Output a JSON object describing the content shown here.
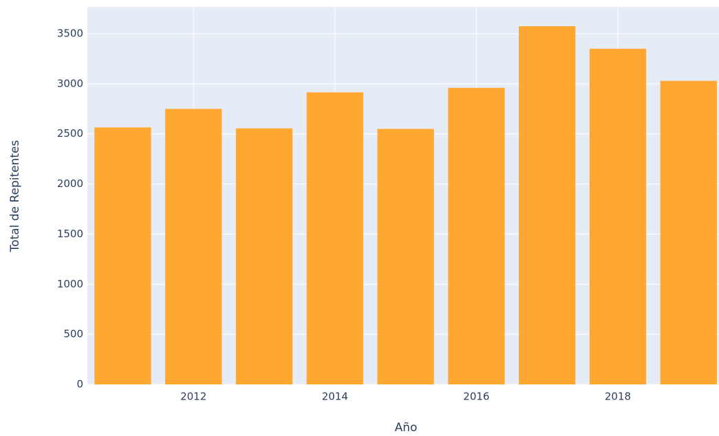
{
  "chart_data": {
    "type": "bar",
    "x_label": "Año",
    "y_label": "Total de Repitentes",
    "x": [
      2011,
      2012,
      2013,
      2014,
      2015,
      2016,
      2017,
      2018,
      2019
    ],
    "values": [
      2565,
      2750,
      2555,
      2915,
      2550,
      2960,
      3575,
      3350,
      3030
    ],
    "color": "#fea832",
    "xlim": [
      2010.5,
      2019.43
    ],
    "xticks": [
      2012,
      2014,
      2016,
      2018
    ],
    "ylim": [
      0,
      3768
    ],
    "yticks": [
      0,
      500,
      1000,
      1500,
      2000,
      2500,
      3000,
      3500
    ],
    "grid": true
  }
}
